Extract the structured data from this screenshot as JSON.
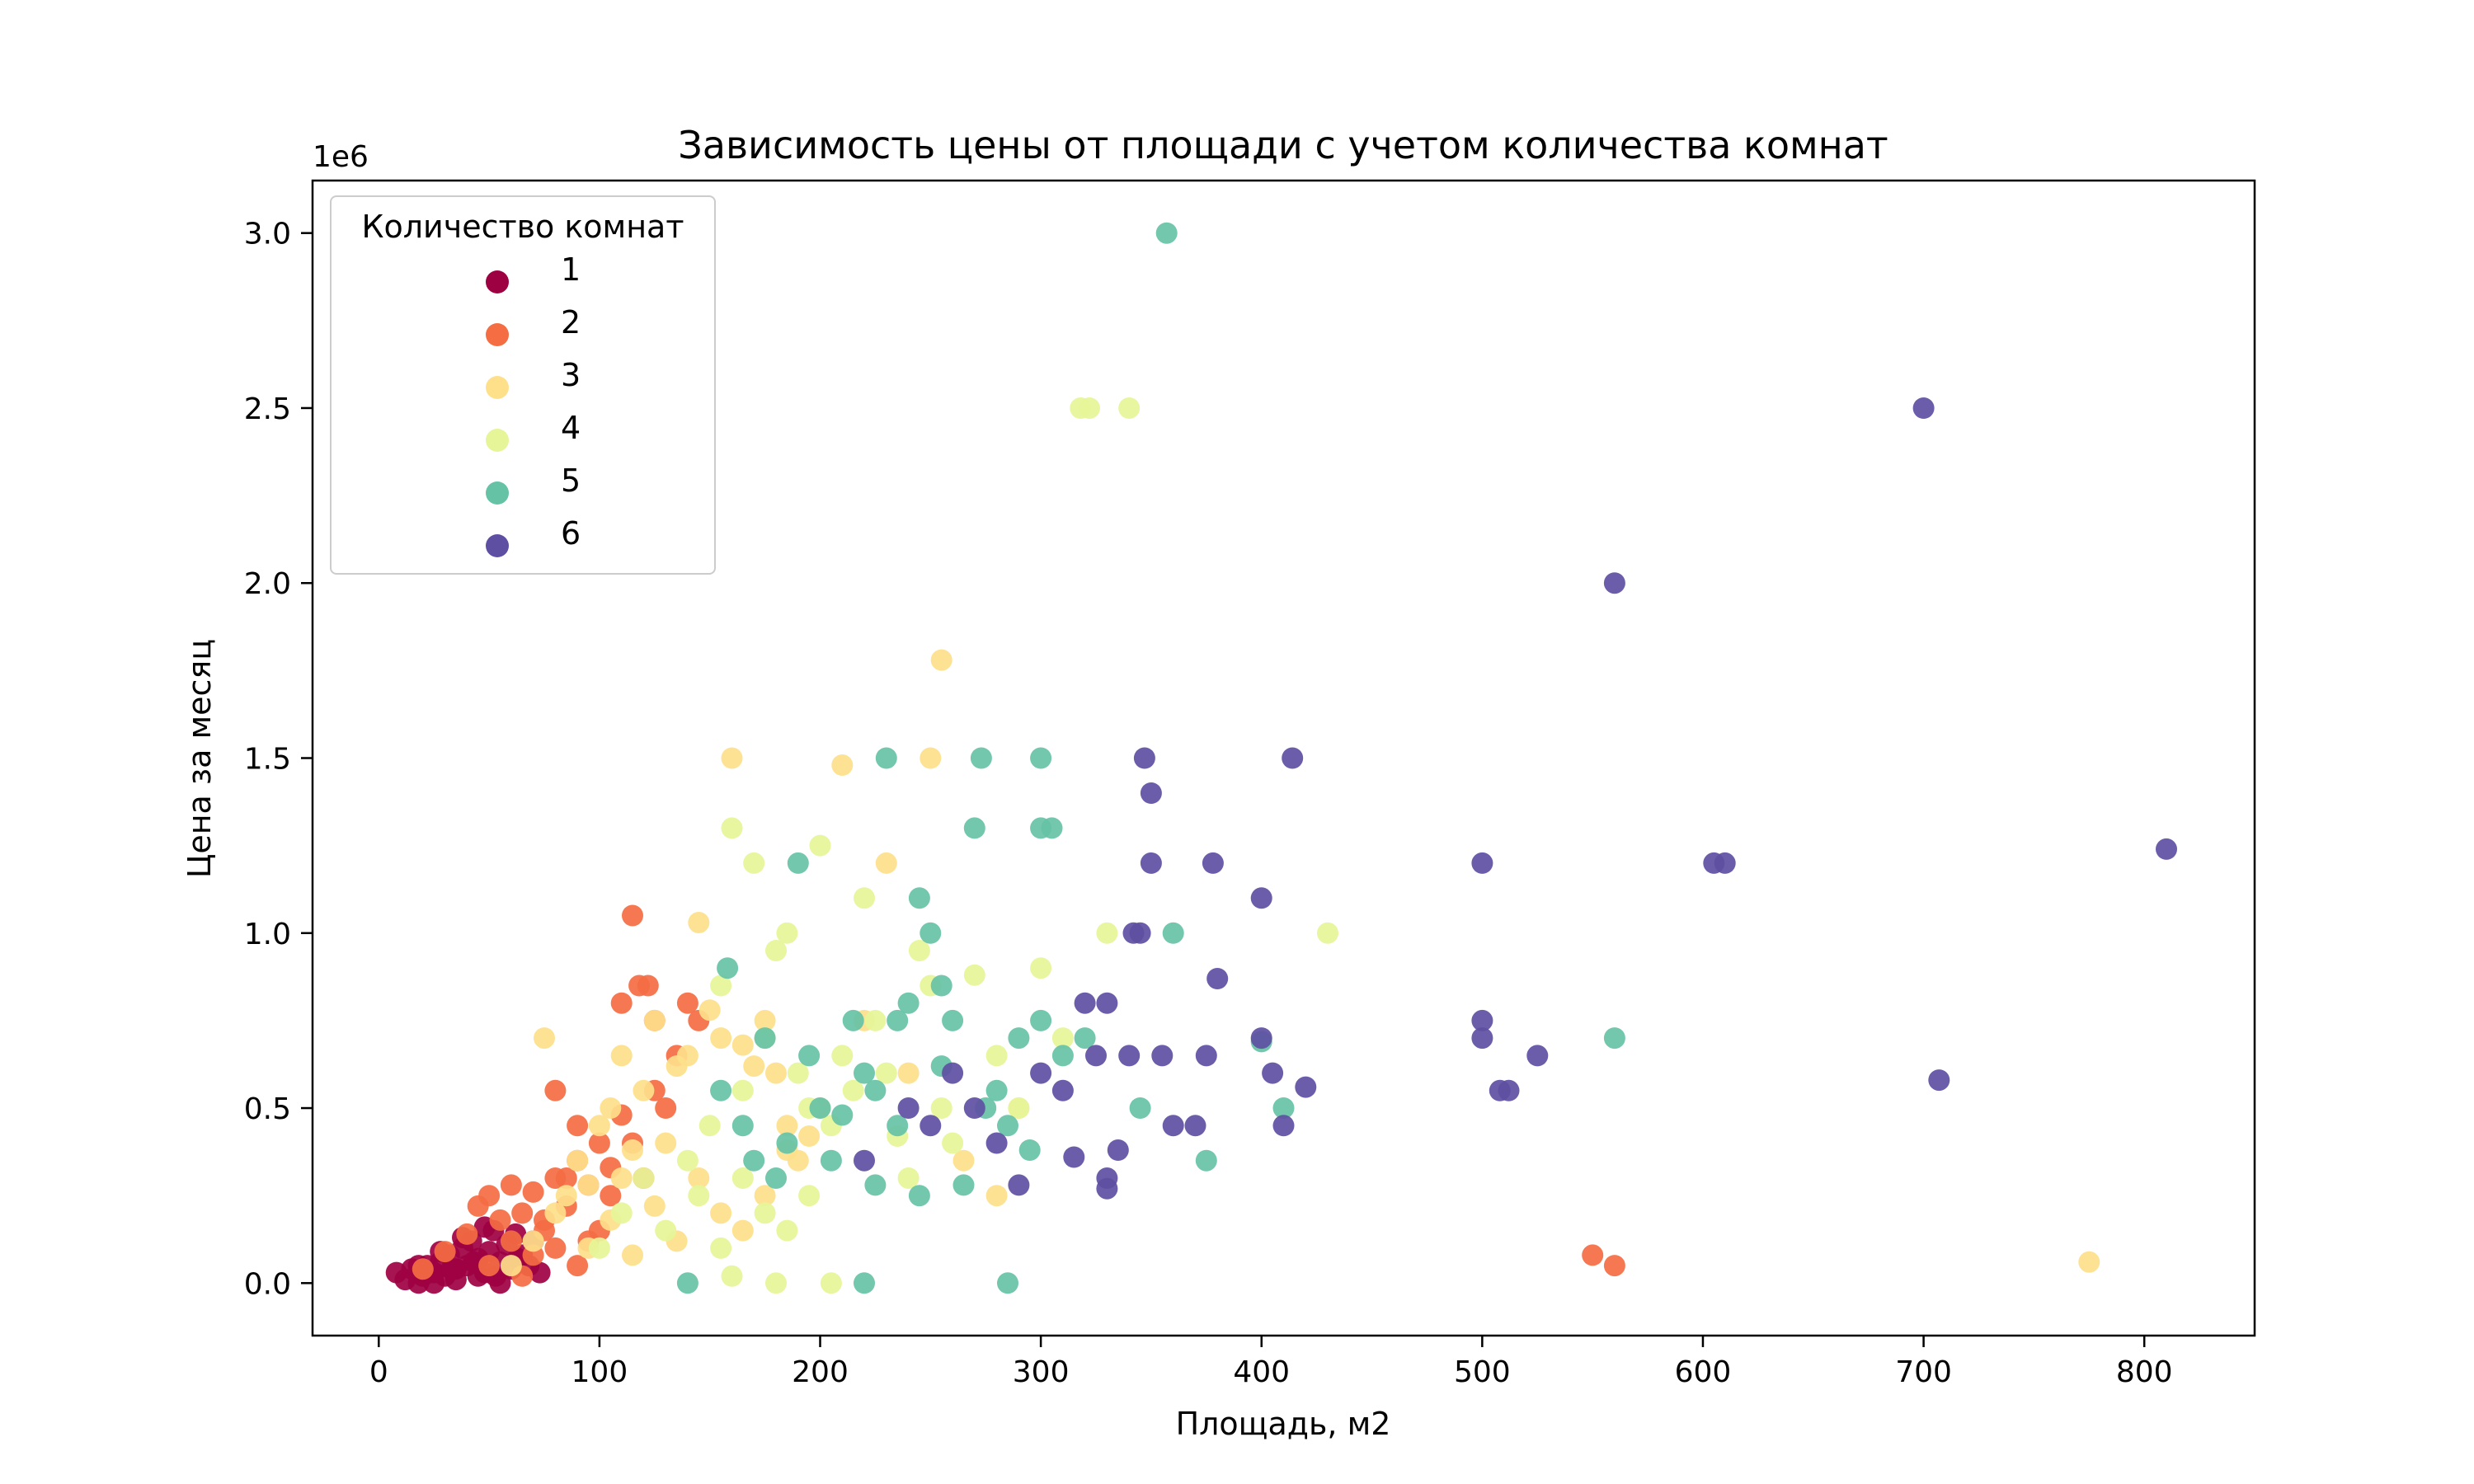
{
  "chart_data": {
    "type": "scatter",
    "title": "Зависимость цены от площади с учетом количества комнат",
    "xlabel": "Площадь, м2",
    "ylabel": "Цена за месяц",
    "y_offset_label": "1e6",
    "xlim": [
      -30,
      850
    ],
    "ylim": [
      -0.15,
      3.15
    ],
    "x_ticks": [
      0,
      100,
      200,
      300,
      400,
      500,
      600,
      700,
      800
    ],
    "x_tick_labels": [
      "0",
      "100",
      "200",
      "300",
      "400",
      "500",
      "600",
      "700",
      "800"
    ],
    "y_ticks": [
      0,
      0.5,
      1.0,
      1.5,
      2.0,
      2.5,
      3.0
    ],
    "y_tick_labels": [
      "0.0",
      "0.5",
      "1.0",
      "1.5",
      "2.0",
      "2.5",
      "3.0"
    ],
    "grid": false,
    "legend": {
      "title": "Количество комнат",
      "position": "top-left"
    },
    "series": [
      {
        "name": "1",
        "color": "#9e0142",
        "points": [
          [
            8,
            0.03
          ],
          [
            12,
            0.01
          ],
          [
            15,
            0.04
          ],
          [
            18,
            0.0
          ],
          [
            20,
            0.02
          ],
          [
            22,
            0.05
          ],
          [
            25,
            0.03
          ],
          [
            28,
            0.06
          ],
          [
            30,
            0.02
          ],
          [
            32,
            0.08
          ],
          [
            35,
            0.04
          ],
          [
            38,
            0.1
          ],
          [
            40,
            0.05
          ],
          [
            42,
            0.12
          ],
          [
            45,
            0.07
          ],
          [
            48,
            0.03
          ],
          [
            50,
            0.09
          ],
          [
            52,
            0.15
          ],
          [
            55,
            0.06
          ],
          [
            58,
            0.11
          ],
          [
            60,
            0.04
          ],
          [
            62,
            0.14
          ],
          [
            65,
            0.08
          ],
          [
            68,
            0.05
          ],
          [
            70,
            0.12
          ],
          [
            25,
            0.0
          ],
          [
            35,
            0.01
          ],
          [
            45,
            0.02
          ],
          [
            55,
            0.0
          ],
          [
            18,
            0.05
          ],
          [
            28,
            0.09
          ],
          [
            38,
            0.13
          ],
          [
            48,
            0.16
          ],
          [
            33,
            0.04
          ],
          [
            43,
            0.06
          ],
          [
            53,
            0.02
          ],
          [
            63,
            0.07
          ],
          [
            73,
            0.03
          ]
        ]
      },
      {
        "name": "2",
        "color": "#f46d43",
        "points": [
          [
            20,
            0.04
          ],
          [
            30,
            0.09
          ],
          [
            40,
            0.14
          ],
          [
            45,
            0.22
          ],
          [
            50,
            0.25
          ],
          [
            55,
            0.18
          ],
          [
            60,
            0.28
          ],
          [
            65,
            0.2
          ],
          [
            70,
            0.26
          ],
          [
            75,
            0.15
          ],
          [
            80,
            0.3
          ],
          [
            85,
            0.22
          ],
          [
            90,
            0.35
          ],
          [
            95,
            0.28
          ],
          [
            100,
            0.4
          ],
          [
            105,
            0.33
          ],
          [
            110,
            0.48
          ],
          [
            115,
            1.05
          ],
          [
            110,
            0.8
          ],
          [
            118,
            0.85
          ],
          [
            122,
            0.85
          ],
          [
            125,
            0.75
          ],
          [
            80,
            0.55
          ],
          [
            90,
            0.45
          ],
          [
            60,
            0.12
          ],
          [
            70,
            0.08
          ],
          [
            80,
            0.1
          ],
          [
            90,
            0.05
          ],
          [
            100,
            0.15
          ],
          [
            120,
            0.3
          ],
          [
            130,
            0.5
          ],
          [
            140,
            0.8
          ],
          [
            145,
            0.75
          ],
          [
            550,
            0.08
          ],
          [
            560,
            0.05
          ],
          [
            50,
            0.05
          ],
          [
            65,
            0.02
          ],
          [
            75,
            0.18
          ],
          [
            85,
            0.3
          ],
          [
            95,
            0.12
          ],
          [
            105,
            0.25
          ],
          [
            115,
            0.4
          ],
          [
            125,
            0.55
          ],
          [
            135,
            0.65
          ]
        ]
      },
      {
        "name": "3",
        "color": "#fee08b",
        "points": [
          [
            60,
            0.05
          ],
          [
            70,
            0.12
          ],
          [
            75,
            0.7
          ],
          [
            80,
            0.2
          ],
          [
            85,
            0.25
          ],
          [
            90,
            0.35
          ],
          [
            95,
            0.28
          ],
          [
            100,
            0.45
          ],
          [
            105,
            0.5
          ],
          [
            110,
            0.3
          ],
          [
            110,
            0.65
          ],
          [
            115,
            0.38
          ],
          [
            120,
            0.55
          ],
          [
            125,
            0.75
          ],
          [
            130,
            0.4
          ],
          [
            135,
            0.62
          ],
          [
            140,
            0.65
          ],
          [
            145,
            1.03
          ],
          [
            150,
            0.78
          ],
          [
            155,
            0.7
          ],
          [
            160,
            1.5
          ],
          [
            165,
            0.68
          ],
          [
            170,
            0.62
          ],
          [
            175,
            0.75
          ],
          [
            180,
            0.6
          ],
          [
            185,
            0.45
          ],
          [
            190,
            0.35
          ],
          [
            200,
            0.5
          ],
          [
            210,
            1.48
          ],
          [
            220,
            0.75
          ],
          [
            230,
            1.2
          ],
          [
            240,
            0.6
          ],
          [
            250,
            1.5
          ],
          [
            255,
            1.78
          ],
          [
            265,
            0.35
          ],
          [
            280,
            0.25
          ],
          [
            290,
            0.5
          ],
          [
            775,
            0.06
          ],
          [
            95,
            0.1
          ],
          [
            105,
            0.18
          ],
          [
            115,
            0.08
          ],
          [
            125,
            0.22
          ],
          [
            135,
            0.12
          ],
          [
            145,
            0.3
          ],
          [
            155,
            0.2
          ],
          [
            165,
            0.15
          ],
          [
            175,
            0.25
          ],
          [
            185,
            0.38
          ],
          [
            195,
            0.42
          ]
        ]
      },
      {
        "name": "4",
        "color": "#e6f598",
        "points": [
          [
            100,
            0.1
          ],
          [
            110,
            0.2
          ],
          [
            120,
            0.3
          ],
          [
            130,
            0.15
          ],
          [
            140,
            0.35
          ],
          [
            150,
            0.45
          ],
          [
            155,
            0.85
          ],
          [
            160,
            1.3
          ],
          [
            165,
            0.55
          ],
          [
            170,
            1.2
          ],
          [
            175,
            0.7
          ],
          [
            180,
            0.95
          ],
          [
            185,
            1.0
          ],
          [
            190,
            0.6
          ],
          [
            195,
            0.5
          ],
          [
            200,
            1.25
          ],
          [
            205,
            0.45
          ],
          [
            210,
            0.65
          ],
          [
            215,
            0.55
          ],
          [
            220,
            1.1
          ],
          [
            225,
            0.75
          ],
          [
            230,
            0.6
          ],
          [
            235,
            0.42
          ],
          [
            240,
            0.3
          ],
          [
            245,
            0.95
          ],
          [
            250,
            0.85
          ],
          [
            255,
            0.5
          ],
          [
            260,
            0.4
          ],
          [
            270,
            0.88
          ],
          [
            280,
            0.65
          ],
          [
            290,
            0.5
          ],
          [
            300,
            0.9
          ],
          [
            310,
            0.7
          ],
          [
            318,
            2.5
          ],
          [
            322,
            2.5
          ],
          [
            340,
            2.5
          ],
          [
            330,
            1.0
          ],
          [
            430,
            1.0
          ],
          [
            180,
            0.0
          ],
          [
            205,
            0.0
          ],
          [
            145,
            0.25
          ],
          [
            155,
            0.1
          ],
          [
            165,
            0.3
          ],
          [
            175,
            0.2
          ],
          [
            185,
            0.15
          ],
          [
            195,
            0.25
          ],
          [
            160,
            0.02
          ]
        ]
      },
      {
        "name": "5",
        "color": "#66c2a5",
        "points": [
          [
            140,
            0.0
          ],
          [
            155,
            0.55
          ],
          [
            158,
            0.9
          ],
          [
            165,
            0.45
          ],
          [
            170,
            0.35
          ],
          [
            175,
            0.7
          ],
          [
            180,
            0.3
          ],
          [
            185,
            0.4
          ],
          [
            190,
            1.2
          ],
          [
            195,
            0.65
          ],
          [
            200,
            0.5
          ],
          [
            205,
            0.35
          ],
          [
            210,
            0.48
          ],
          [
            215,
            0.75
          ],
          [
            220,
            0.6
          ],
          [
            225,
            0.55
          ],
          [
            230,
            1.5
          ],
          [
            235,
            0.75
          ],
          [
            240,
            0.8
          ],
          [
            245,
            1.1
          ],
          [
            250,
            1.0
          ],
          [
            255,
            0.85
          ],
          [
            260,
            0.75
          ],
          [
            270,
            1.3
          ],
          [
            273,
            1.5
          ],
          [
            275,
            0.5
          ],
          [
            280,
            0.55
          ],
          [
            285,
            0.45
          ],
          [
            290,
            0.7
          ],
          [
            295,
            0.38
          ],
          [
            300,
            0.75
          ],
          [
            300,
            1.5
          ],
          [
            300,
            1.3
          ],
          [
            305,
            1.3
          ],
          [
            310,
            0.65
          ],
          [
            320,
            0.7
          ],
          [
            345,
            0.5
          ],
          [
            357,
            3.0
          ],
          [
            360,
            1.0
          ],
          [
            375,
            0.35
          ],
          [
            400,
            0.69
          ],
          [
            410,
            0.5
          ],
          [
            560,
            0.7
          ],
          [
            220,
            0.0
          ],
          [
            285,
            0.0
          ],
          [
            225,
            0.28
          ],
          [
            235,
            0.45
          ],
          [
            245,
            0.25
          ],
          [
            255,
            0.62
          ],
          [
            265,
            0.28
          ]
        ]
      },
      {
        "name": "6",
        "color": "#5e4fa2",
        "points": [
          [
            220,
            0.35
          ],
          [
            240,
            0.5
          ],
          [
            250,
            0.45
          ],
          [
            260,
            0.6
          ],
          [
            270,
            0.5
          ],
          [
            280,
            0.4
          ],
          [
            290,
            0.28
          ],
          [
            300,
            0.6
          ],
          [
            310,
            0.55
          ],
          [
            315,
            0.36
          ],
          [
            320,
            0.8
          ],
          [
            325,
            0.65
          ],
          [
            330,
            0.3
          ],
          [
            330,
            0.8
          ],
          [
            335,
            0.38
          ],
          [
            340,
            0.65
          ],
          [
            342,
            1.0
          ],
          [
            345,
            1.0
          ],
          [
            347,
            1.5
          ],
          [
            350,
            1.4
          ],
          [
            350,
            1.2
          ],
          [
            355,
            0.65
          ],
          [
            360,
            0.45
          ],
          [
            370,
            0.45
          ],
          [
            375,
            0.65
          ],
          [
            378,
            1.2
          ],
          [
            380,
            0.87
          ],
          [
            400,
            1.1
          ],
          [
            400,
            0.7
          ],
          [
            405,
            0.6
          ],
          [
            410,
            0.45
          ],
          [
            414,
            1.5
          ],
          [
            420,
            0.56
          ],
          [
            500,
            1.2
          ],
          [
            500,
            0.75
          ],
          [
            500,
            0.7
          ],
          [
            508,
            0.55
          ],
          [
            512,
            0.55
          ],
          [
            525,
            0.65
          ],
          [
            560,
            2.0
          ],
          [
            605,
            1.2
          ],
          [
            610,
            1.2
          ],
          [
            700,
            2.5
          ],
          [
            707,
            0.58
          ],
          [
            810,
            1.24
          ],
          [
            330,
            0.27
          ]
        ]
      }
    ]
  }
}
